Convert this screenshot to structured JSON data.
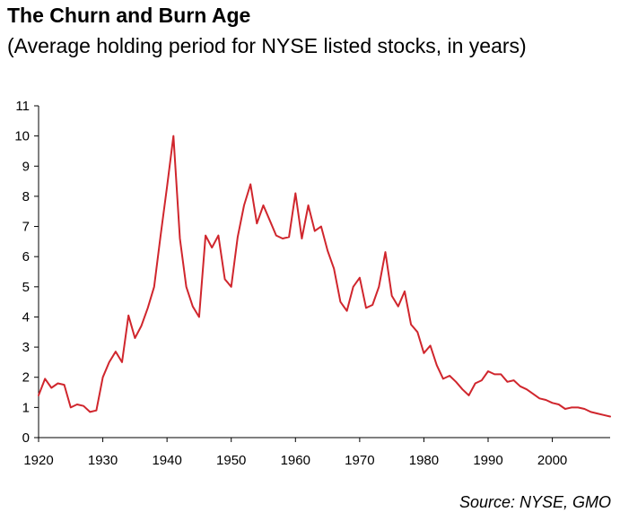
{
  "header": {
    "title": "The Churn and Burn Age",
    "subtitle": "(Average holding period for NYSE listed stocks, in years)"
  },
  "footer": {
    "source": "Source: NYSE, GMO"
  },
  "colors": {
    "line": "#d0262d",
    "axis": "#000000"
  },
  "chart_data": {
    "type": "line",
    "title": "The Churn and Burn Age",
    "subtitle": "(Average holding period for NYSE listed stocks, in years)",
    "xlabel": "",
    "ylabel": "",
    "xlim": [
      1920,
      2009
    ],
    "ylim": [
      0,
      11
    ],
    "x_ticks": [
      1920,
      1930,
      1940,
      1950,
      1960,
      1970,
      1980,
      1990,
      2000
    ],
    "y_ticks": [
      0,
      1,
      2,
      3,
      4,
      5,
      6,
      7,
      8,
      9,
      10,
      11
    ],
    "grid": false,
    "legend": "none",
    "series": [
      {
        "x": [
          1920,
          1921,
          1922,
          1923,
          1924,
          1925,
          1926,
          1927,
          1928,
          1929,
          1930,
          1931,
          1932,
          1933,
          1934,
          1935,
          1936,
          1937,
          1938,
          1939,
          1940,
          1941,
          1942,
          1943,
          1944,
          1945,
          1946,
          1947,
          1948,
          1949,
          1950,
          1951,
          1952,
          1953,
          1954,
          1955,
          1956,
          1957,
          1958,
          1959,
          1960,
          1961,
          1962,
          1963,
          1964,
          1965,
          1966,
          1967,
          1968,
          1969,
          1970,
          1971,
          1972,
          1973,
          1974,
          1975,
          1976,
          1977,
          1978,
          1979,
          1980,
          1981,
          1982,
          1983,
          1984,
          1985,
          1986,
          1987,
          1988,
          1989,
          1990,
          1991,
          1992,
          1993,
          1994,
          1995,
          1996,
          1997,
          1998,
          1999,
          2000,
          2001,
          2002,
          2003,
          2004,
          2005,
          2006,
          2007,
          2008,
          2009
        ],
        "values": [
          1.4,
          1.95,
          1.65,
          1.8,
          1.75,
          1.0,
          1.1,
          1.05,
          0.85,
          0.9,
          2.0,
          2.5,
          2.85,
          2.5,
          4.05,
          3.3,
          3.7,
          4.3,
          5.0,
          6.7,
          8.3,
          10.0,
          6.6,
          5.0,
          4.35,
          4.0,
          6.7,
          6.3,
          6.7,
          5.25,
          5.0,
          6.65,
          7.7,
          8.4,
          7.1,
          7.7,
          7.2,
          6.7,
          6.6,
          6.65,
          8.1,
          6.6,
          7.7,
          6.85,
          7.0,
          6.2,
          5.6,
          4.5,
          4.2,
          5.0,
          5.3,
          4.3,
          4.4,
          5.0,
          6.15,
          4.7,
          4.35,
          4.85,
          3.75,
          3.5,
          2.8,
          3.05,
          2.4,
          1.95,
          2.05,
          1.85,
          1.6,
          1.4,
          1.8,
          1.9,
          2.2,
          2.1,
          2.1,
          1.85,
          1.9,
          1.7,
          1.6,
          1.45,
          1.3,
          1.25,
          1.15,
          1.1,
          0.95,
          1.0,
          1.0,
          0.95,
          0.85,
          0.8,
          0.75,
          0.7
        ]
      }
    ]
  }
}
